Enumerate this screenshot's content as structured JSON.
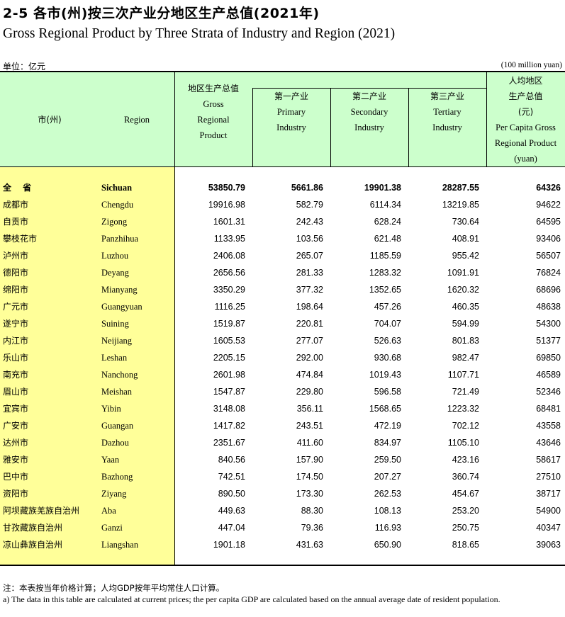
{
  "title": {
    "cn": "2-5  各市(州)按三次产业分地区生产总值(2021年)",
    "en": "Gross Regional Product  by Three Strata of Industry and Region (2021)"
  },
  "unit": {
    "cn": "单位：亿元",
    "en": "(100 million yuan)"
  },
  "headers": {
    "city_cn": "市(州)",
    "region_en": "Region",
    "grp_cn": "地区生产总值",
    "grp_en_1": "Gross",
    "grp_en_2": "Regional",
    "grp_en_3": "Product",
    "primary_cn": "第一产业",
    "primary_en_1": "Primary",
    "primary_en_2": "Industry",
    "secondary_cn": "第二产业",
    "secondary_en_1": "Secondary",
    "secondary_en_2": "Industry",
    "tertiary_cn": "第三产业",
    "tertiary_en_1": "Tertiary",
    "tertiary_en_2": "Industry",
    "percap_cn_1": "人均地区",
    "percap_cn_2": "生产总值",
    "percap_cn_3": "(元)",
    "percap_en_1": "Per Capita Gross",
    "percap_en_2": "Regional Product",
    "percap_en_3": "(yuan)"
  },
  "rows": [
    {
      "cn": "全 省",
      "en": "Sichuan",
      "grp": "53850.79",
      "primary": "5661.86",
      "secondary": "19901.38",
      "tertiary": "28287.55",
      "per_capita": "64326"
    },
    {
      "cn": "成都市",
      "en": "Chengdu",
      "grp": "19916.98",
      "primary": "582.79",
      "secondary": "6114.34",
      "tertiary": "13219.85",
      "per_capita": "94622"
    },
    {
      "cn": "自贡市",
      "en": "Zigong",
      "grp": "1601.31",
      "primary": "242.43",
      "secondary": "628.24",
      "tertiary": "730.64",
      "per_capita": "64595"
    },
    {
      "cn": "攀枝花市",
      "en": "Panzhihua",
      "grp": "1133.95",
      "primary": "103.56",
      "secondary": "621.48",
      "tertiary": "408.91",
      "per_capita": "93406"
    },
    {
      "cn": "泸州市",
      "en": "Luzhou",
      "grp": "2406.08",
      "primary": "265.07",
      "secondary": "1185.59",
      "tertiary": "955.42",
      "per_capita": "56507"
    },
    {
      "cn": "德阳市",
      "en": "Deyang",
      "grp": "2656.56",
      "primary": "281.33",
      "secondary": "1283.32",
      "tertiary": "1091.91",
      "per_capita": "76824"
    },
    {
      "cn": "绵阳市",
      "en": "Mianyang",
      "grp": "3350.29",
      "primary": "377.32",
      "secondary": "1352.65",
      "tertiary": "1620.32",
      "per_capita": "68696"
    },
    {
      "cn": "广元市",
      "en": "Guangyuan",
      "grp": "1116.25",
      "primary": "198.64",
      "secondary": "457.26",
      "tertiary": "460.35",
      "per_capita": "48638"
    },
    {
      "cn": "遂宁市",
      "en": "Suining",
      "grp": "1519.87",
      "primary": "220.81",
      "secondary": "704.07",
      "tertiary": "594.99",
      "per_capita": "54300"
    },
    {
      "cn": "内江市",
      "en": "Neijiang",
      "grp": "1605.53",
      "primary": "277.07",
      "secondary": "526.63",
      "tertiary": "801.83",
      "per_capita": "51377"
    },
    {
      "cn": "乐山市",
      "en": "Leshan",
      "grp": "2205.15",
      "primary": "292.00",
      "secondary": "930.68",
      "tertiary": "982.47",
      "per_capita": "69850"
    },
    {
      "cn": "南充市",
      "en": "Nanchong",
      "grp": "2601.98",
      "primary": "474.84",
      "secondary": "1019.43",
      "tertiary": "1107.71",
      "per_capita": "46589"
    },
    {
      "cn": "眉山市",
      "en": "Meishan",
      "grp": "1547.87",
      "primary": "229.80",
      "secondary": "596.58",
      "tertiary": "721.49",
      "per_capita": "52346"
    },
    {
      "cn": "宜宾市",
      "en": "Yibin",
      "grp": "3148.08",
      "primary": "356.11",
      "secondary": "1568.65",
      "tertiary": "1223.32",
      "per_capita": "68481"
    },
    {
      "cn": "广安市",
      "en": "Guangan",
      "grp": "1417.82",
      "primary": "243.51",
      "secondary": "472.19",
      "tertiary": "702.12",
      "per_capita": "43558"
    },
    {
      "cn": "达州市",
      "en": "Dazhou",
      "grp": "2351.67",
      "primary": "411.60",
      "secondary": "834.97",
      "tertiary": "1105.10",
      "per_capita": "43646"
    },
    {
      "cn": "雅安市",
      "en": "Yaan",
      "grp": "840.56",
      "primary": "157.90",
      "secondary": "259.50",
      "tertiary": "423.16",
      "per_capita": "58617"
    },
    {
      "cn": "巴中市",
      "en": "Bazhong",
      "grp": "742.51",
      "primary": "174.50",
      "secondary": "207.27",
      "tertiary": "360.74",
      "per_capita": "27510"
    },
    {
      "cn": "资阳市",
      "en": "Ziyang",
      "grp": "890.50",
      "primary": "173.30",
      "secondary": "262.53",
      "tertiary": "454.67",
      "per_capita": "38717"
    },
    {
      "cn": "阿坝藏族羌族自治州",
      "en": "Aba",
      "grp": "449.63",
      "primary": "88.30",
      "secondary": "108.13",
      "tertiary": "253.20",
      "per_capita": "54900"
    },
    {
      "cn": "甘孜藏族自治州",
      "en": "Ganzi",
      "grp": "447.04",
      "primary": "79.36",
      "secondary": "116.93",
      "tertiary": "250.75",
      "per_capita": "40347"
    },
    {
      "cn": "凉山彝族自治州",
      "en": "Liangshan",
      "grp": "1901.18",
      "primary": "431.63",
      "secondary": "650.90",
      "tertiary": "818.65",
      "per_capita": "39063"
    }
  ],
  "notes": {
    "cn": "注：本表按当年价格计算；人均GDP按年平均常住人口计算。",
    "en": "a) The data in this table are calculated at current prices; the per capita GDP are calculated based on the annual average date of resident population."
  }
}
